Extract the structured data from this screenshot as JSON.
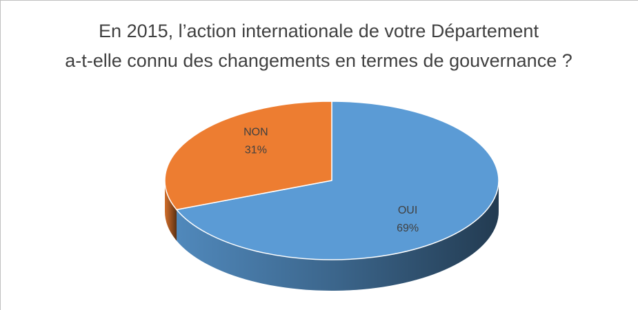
{
  "chart_data": {
    "type": "pie3d",
    "title": [
      "En 2015, l’action internationale de votre Département",
      "a-t-elle connu des changements en termes de gouvernance ?"
    ],
    "categories": [
      "OUI",
      "NON"
    ],
    "values": [
      69,
      31
    ],
    "value_labels": [
      "69%",
      "31%"
    ],
    "colors": [
      "#5b9bd5",
      "#ed7d31"
    ]
  }
}
